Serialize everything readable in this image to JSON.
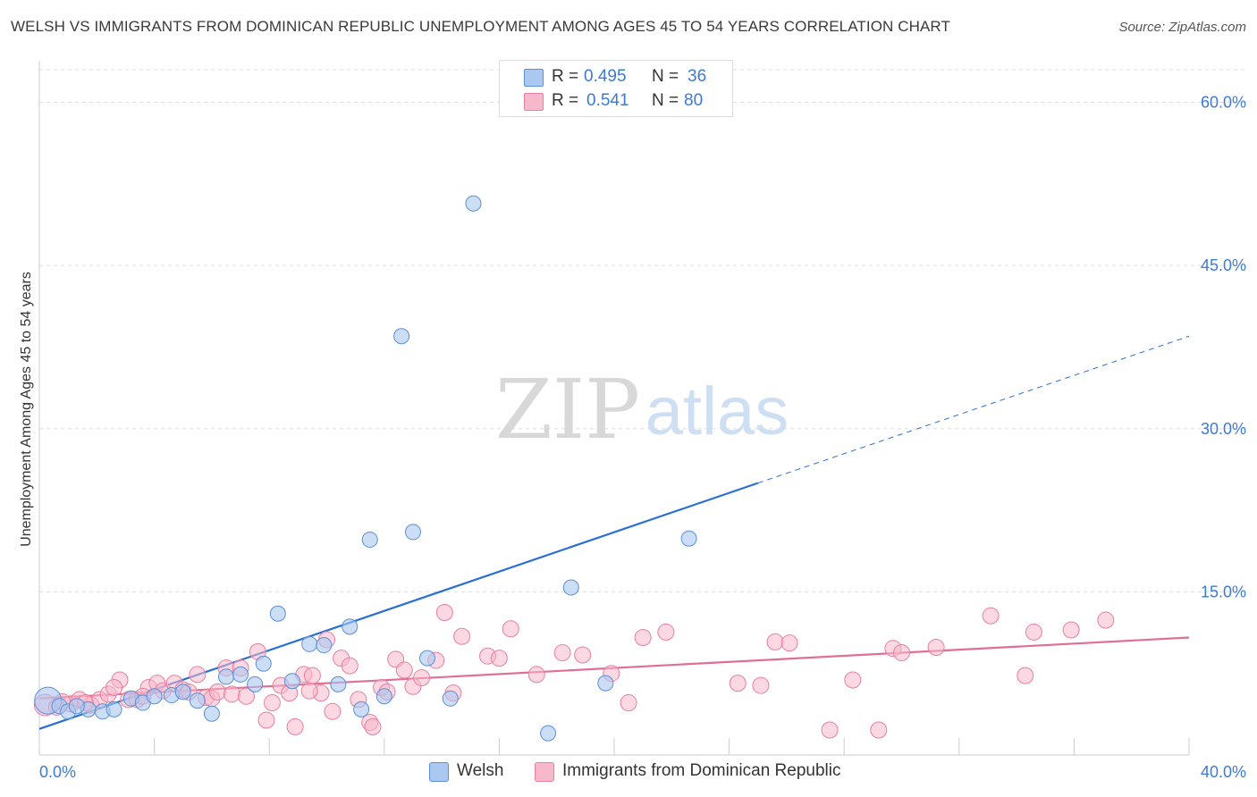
{
  "title": "WELSH VS IMMIGRANTS FROM DOMINICAN REPUBLIC UNEMPLOYMENT AMONG AGES 45 TO 54 YEARS CORRELATION CHART",
  "source": "Source: ZipAtlas.com",
  "watermark": {
    "zip": "ZIP",
    "atlas": "atlas"
  },
  "legend_top": {
    "welsh": {
      "r_label": "R =",
      "r_value": "0.495",
      "n_label": "N =",
      "n_value": "36"
    },
    "dominican": {
      "r_label": "R =",
      "r_value": "0.541",
      "n_label": "N =",
      "n_value": "80"
    }
  },
  "legend_bottom": {
    "welsh": "Welsh",
    "dominican": "Immigrants from Dominican Republic"
  },
  "colors": {
    "welsh_fill": "#aac8f0",
    "welsh_stroke": "#5b8fd6",
    "welsh_line": "#2a6fd4",
    "dominican_fill": "#f7b8cb",
    "dominican_stroke": "#e87fa0",
    "dominican_line": "#e06f95",
    "axis_label": "#3d7ad6",
    "grid": "#dddddd"
  },
  "chart_data": {
    "type": "scatter",
    "title": "WELSH VS IMMIGRANTS FROM DOMINICAN REPUBLIC UNEMPLOYMENT AMONG AGES 45 TO 54 YEARS CORRELATION CHART",
    "xlabel": "",
    "ylabel": "Unemployment Among Ages 45 to 54 years",
    "xlim": [
      0,
      40
    ],
    "ylim": [
      0,
      63
    ],
    "x_tick_labels": [
      "0.0%",
      "40.0%"
    ],
    "y_ticks": [
      15,
      30,
      45,
      60
    ],
    "y_tick_labels": [
      "15.0%",
      "30.0%",
      "45.0%",
      "60.0%"
    ],
    "grid": true,
    "series": [
      {
        "name": "Welsh",
        "r": 0.495,
        "n": 36,
        "trend": {
          "x0": 0.0,
          "y0": 2.4,
          "x1": 25.0,
          "y1": 25.0,
          "dash_to_x": 40.0,
          "dash_to_y": 38.5
        },
        "points": [
          [
            0.3,
            5.0
          ],
          [
            0.7,
            4.5
          ],
          [
            1.0,
            4.0
          ],
          [
            1.7,
            4.2
          ],
          [
            2.2,
            4.0
          ],
          [
            2.6,
            4.2
          ],
          [
            3.2,
            5.2
          ],
          [
            3.6,
            4.8
          ],
          [
            4.0,
            5.4
          ],
          [
            4.6,
            5.5
          ],
          [
            5.0,
            5.8
          ],
          [
            5.5,
            5.0
          ],
          [
            6.0,
            3.8
          ],
          [
            6.5,
            7.2
          ],
          [
            7.0,
            7.4
          ],
          [
            7.5,
            6.5
          ],
          [
            7.8,
            8.4
          ],
          [
            8.3,
            13.0
          ],
          [
            8.8,
            6.8
          ],
          [
            9.4,
            10.2
          ],
          [
            9.9,
            10.1
          ],
          [
            10.4,
            6.5
          ],
          [
            10.8,
            11.8
          ],
          [
            11.2,
            4.2
          ],
          [
            11.5,
            19.8
          ],
          [
            12.0,
            5.4
          ],
          [
            12.6,
            38.5
          ],
          [
            13.0,
            20.5
          ],
          [
            13.5,
            8.9
          ],
          [
            14.3,
            5.2
          ],
          [
            15.1,
            50.7
          ],
          [
            17.7,
            2.0
          ],
          [
            18.5,
            15.4
          ],
          [
            19.7,
            6.6
          ],
          [
            22.6,
            19.9
          ],
          [
            1.3,
            4.5
          ]
        ]
      },
      {
        "name": "Immigrants from Dominican Republic",
        "r": 0.541,
        "n": 80,
        "trend": {
          "x0": 0.0,
          "y0": 5.2,
          "x1": 40.0,
          "y1": 10.8
        },
        "points": [
          [
            0.2,
            4.6
          ],
          [
            0.6,
            4.4
          ],
          [
            1.1,
            4.7
          ],
          [
            1.4,
            5.1
          ],
          [
            1.8,
            4.6
          ],
          [
            2.1,
            5.1
          ],
          [
            2.4,
            5.6
          ],
          [
            2.8,
            6.9
          ],
          [
            3.1,
            5.1
          ],
          [
            3.4,
            5.1
          ],
          [
            3.8,
            6.2
          ],
          [
            4.1,
            6.6
          ],
          [
            4.3,
            5.9
          ],
          [
            4.7,
            6.6
          ],
          [
            5.0,
            6.0
          ],
          [
            5.2,
            5.8
          ],
          [
            5.5,
            7.4
          ],
          [
            5.8,
            5.3
          ],
          [
            6.0,
            5.2
          ],
          [
            6.2,
            5.8
          ],
          [
            6.5,
            8.0
          ],
          [
            6.7,
            5.6
          ],
          [
            7.0,
            8.0
          ],
          [
            7.2,
            5.4
          ],
          [
            7.6,
            9.5
          ],
          [
            7.9,
            3.2
          ],
          [
            8.1,
            4.8
          ],
          [
            8.4,
            6.4
          ],
          [
            8.7,
            5.7
          ],
          [
            8.9,
            2.6
          ],
          [
            9.2,
            7.4
          ],
          [
            9.5,
            7.3
          ],
          [
            9.8,
            5.7
          ],
          [
            10.0,
            10.6
          ],
          [
            10.2,
            4.0
          ],
          [
            10.5,
            8.9
          ],
          [
            10.8,
            8.2
          ],
          [
            11.1,
            5.1
          ],
          [
            11.5,
            3.0
          ],
          [
            11.6,
            2.6
          ],
          [
            11.9,
            6.2
          ],
          [
            12.1,
            5.8
          ],
          [
            12.4,
            8.8
          ],
          [
            12.7,
            7.8
          ],
          [
            13.0,
            6.3
          ],
          [
            13.3,
            7.1
          ],
          [
            13.8,
            8.7
          ],
          [
            14.1,
            13.1
          ],
          [
            14.4,
            5.7
          ],
          [
            14.7,
            10.9
          ],
          [
            15.6,
            9.1
          ],
          [
            16.0,
            8.9
          ],
          [
            16.4,
            11.6
          ],
          [
            17.3,
            7.4
          ],
          [
            18.2,
            9.4
          ],
          [
            18.9,
            9.2
          ],
          [
            19.9,
            7.5
          ],
          [
            20.5,
            4.8
          ],
          [
            21.0,
            10.8
          ],
          [
            21.8,
            11.3
          ],
          [
            24.3,
            6.6
          ],
          [
            25.1,
            6.4
          ],
          [
            25.6,
            10.4
          ],
          [
            26.1,
            10.3
          ],
          [
            27.5,
            2.3
          ],
          [
            28.3,
            6.9
          ],
          [
            29.2,
            2.3
          ],
          [
            29.7,
            9.8
          ],
          [
            30.0,
            9.4
          ],
          [
            31.2,
            9.9
          ],
          [
            33.1,
            12.8
          ],
          [
            34.3,
            7.3
          ],
          [
            34.6,
            11.3
          ],
          [
            35.9,
            11.5
          ],
          [
            37.1,
            12.4
          ],
          [
            0.8,
            4.9
          ],
          [
            1.6,
            4.8
          ],
          [
            2.6,
            6.2
          ],
          [
            3.6,
            5.4
          ],
          [
            9.4,
            5.9
          ]
        ]
      }
    ]
  }
}
